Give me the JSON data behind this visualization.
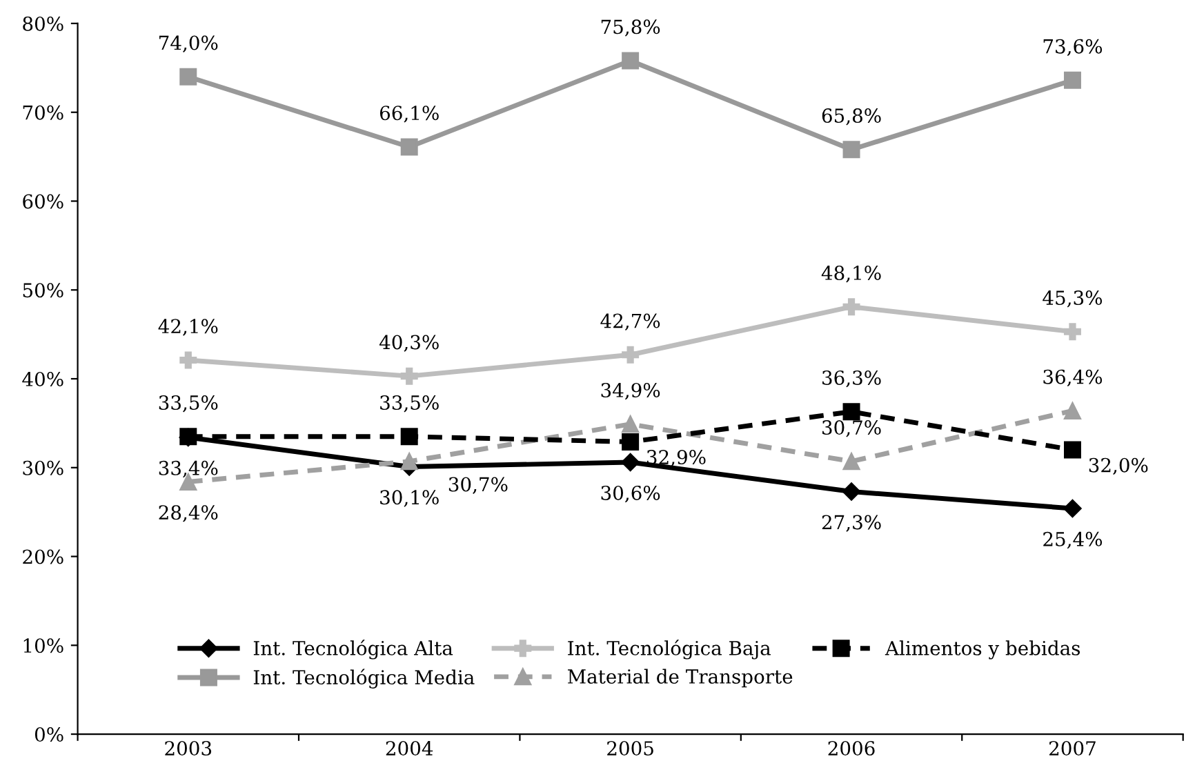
{
  "chart_data": {
    "type": "line",
    "categories": [
      "2003",
      "2004",
      "2005",
      "2006",
      "2007"
    ],
    "series": [
      {
        "name": "Int. Tecnológica Alta",
        "color": "#000000",
        "marker": "diamond",
        "line_style": "solid",
        "values": [
          33.4,
          30.1,
          30.6,
          27.3,
          25.4
        ],
        "value_labels": [
          "33,4%",
          "30,1%",
          "30,6%",
          "27,3%",
          "25,4%"
        ]
      },
      {
        "name": "Int. Tecnológica Media",
        "color": "#999999",
        "marker": "square",
        "line_style": "solid",
        "values": [
          74.0,
          66.1,
          75.8,
          65.8,
          73.6
        ],
        "value_labels": [
          "74,0%",
          "66,1%",
          "75,8%",
          "65,8%",
          "73,6%"
        ]
      },
      {
        "name": "Int. Tecnológica Baja",
        "color": "#bdbdbd",
        "marker": "cross",
        "line_style": "solid",
        "values": [
          42.1,
          40.3,
          42.7,
          48.1,
          45.3
        ],
        "value_labels": [
          "42,1%",
          "40,3%",
          "42,7%",
          "48,1%",
          "45,3%"
        ]
      },
      {
        "name": "Material de Transporte",
        "color": "#a0a0a0",
        "marker": "triangle",
        "line_style": "dashed",
        "values": [
          28.4,
          30.7,
          34.9,
          30.7,
          36.4
        ],
        "value_labels": [
          "28,4%",
          "30,7%",
          "34,9%",
          "30,7%",
          "36,4%"
        ]
      },
      {
        "name": "Alimentos y bebidas",
        "color": "#000000",
        "marker": "square",
        "line_style": "dashed",
        "values": [
          33.5,
          33.5,
          32.9,
          36.3,
          32.0
        ],
        "value_labels": [
          "33,5%",
          "33,5%",
          "32,9%",
          "36,3%",
          "32,0%"
        ]
      }
    ],
    "ylim": [
      0,
      80
    ],
    "yticks": [
      {
        "value": 0,
        "label": "0%"
      },
      {
        "value": 10,
        "label": "10%"
      },
      {
        "value": 20,
        "label": "20%"
      },
      {
        "value": 30,
        "label": "30%"
      },
      {
        "value": 40,
        "label": "40%"
      },
      {
        "value": 50,
        "label": "50%"
      },
      {
        "value": 60,
        "label": "60%"
      },
      {
        "value": 70,
        "label": "70%"
      },
      {
        "value": 80,
        "label": "80%"
      }
    ],
    "grid": false,
    "legend": "bottom"
  }
}
